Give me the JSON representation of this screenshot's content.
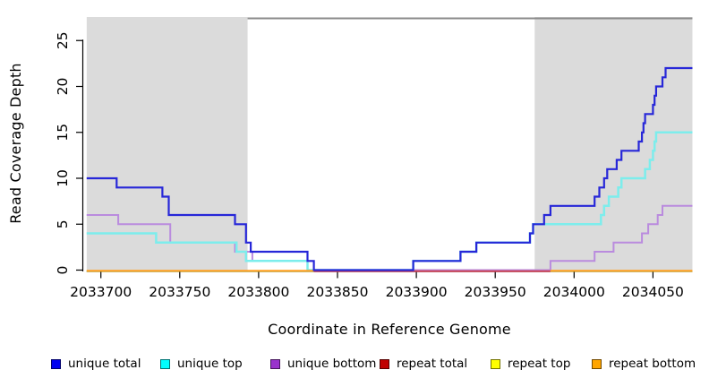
{
  "chart_data": {
    "type": "line",
    "subtype": "step",
    "title": "",
    "xlabel": "Coordinate in Reference Genome",
    "ylabel": "Read Coverage Depth",
    "xlim": [
      2033691,
      2034075
    ],
    "ylim": [
      0,
      27.5
    ],
    "grid": false,
    "legend_position": "bottom",
    "x_ticks": [
      2033700,
      2033750,
      2033800,
      2033850,
      2033900,
      2033950,
      2034000,
      2034050
    ],
    "y_ticks": [
      0,
      5,
      10,
      15,
      20,
      25
    ],
    "shaded_regions": [
      {
        "name": "left-gray-region",
        "from": 2033691,
        "to": 2033793,
        "color": "#dbdbdb"
      },
      {
        "name": "right-gray-region",
        "from": 2033975,
        "to": 2034075,
        "color": "#dbdbdb"
      }
    ],
    "top_bar": {
      "from": 2033793,
      "to": 2034075,
      "color": "#8b8b8b"
    },
    "series": [
      {
        "name": "unique total",
        "line_color": "#2727d8",
        "legend_color": "#0000f0",
        "step_points": [
          [
            2033691,
            10
          ],
          [
            2033710,
            9
          ],
          [
            2033739,
            8
          ],
          [
            2033743,
            6
          ],
          [
            2033785,
            5
          ],
          [
            2033792,
            3
          ],
          [
            2033795,
            2
          ],
          [
            2033831,
            1
          ],
          [
            2033835,
            0
          ],
          [
            2033898,
            1
          ],
          [
            2033928,
            2
          ],
          [
            2033938,
            3
          ],
          [
            2033972,
            4
          ],
          [
            2033974,
            5
          ],
          [
            2033981,
            6
          ],
          [
            2033985,
            7
          ],
          [
            2034013,
            8
          ],
          [
            2034016,
            9
          ],
          [
            2034019,
            10
          ],
          [
            2034021,
            11
          ],
          [
            2034027,
            12
          ],
          [
            2034030,
            13
          ],
          [
            2034041,
            14
          ],
          [
            2034043,
            15
          ],
          [
            2034044,
            16
          ],
          [
            2034045,
            17
          ],
          [
            2034050,
            18
          ],
          [
            2034051,
            19
          ],
          [
            2034052,
            20
          ],
          [
            2034056,
            21
          ],
          [
            2034058,
            22
          ],
          [
            2034075,
            22
          ]
        ]
      },
      {
        "name": "unique top",
        "line_color": "#7dedec",
        "legend_color": "#00ffff",
        "step_points": [
          [
            2033691,
            4
          ],
          [
            2033735,
            3
          ],
          [
            2033786,
            2
          ],
          [
            2033792,
            1
          ],
          [
            2033831,
            0
          ],
          [
            2033898,
            1
          ],
          [
            2033928,
            2
          ],
          [
            2033938,
            3
          ],
          [
            2033972,
            4
          ],
          [
            2033974,
            5
          ],
          [
            2034017,
            6
          ],
          [
            2034019,
            7
          ],
          [
            2034022,
            8
          ],
          [
            2034028,
            9
          ],
          [
            2034030,
            10
          ],
          [
            2034045,
            11
          ],
          [
            2034048,
            12
          ],
          [
            2034050,
            13
          ],
          [
            2034051,
            14
          ],
          [
            2034052,
            15
          ],
          [
            2034075,
            15
          ]
        ]
      },
      {
        "name": "unique bottom",
        "line_color": "#ba8bde",
        "legend_color": "#9932cc",
        "step_points": [
          [
            2033691,
            6
          ],
          [
            2033711,
            5
          ],
          [
            2033744,
            3
          ],
          [
            2033785,
            2
          ],
          [
            2033796,
            1
          ],
          [
            2033831,
            0
          ],
          [
            2033985,
            1
          ],
          [
            2034013,
            2
          ],
          [
            2034025,
            3
          ],
          [
            2034043,
            4
          ],
          [
            2034047,
            5
          ],
          [
            2034053,
            6
          ],
          [
            2034056,
            7
          ],
          [
            2034075,
            7
          ]
        ]
      },
      {
        "name": "repeat total",
        "line_color": "#c94057",
        "legend_color": "#c00000",
        "step_points": [
          [
            2033691,
            0
          ],
          [
            2034075,
            0
          ]
        ],
        "visible_segments": [
          [
            2033835,
            2033985
          ]
        ]
      },
      {
        "name": "repeat top",
        "line_color": "#ffff00",
        "legend_color": "#ffff00",
        "step_points": [
          [
            2033691,
            0
          ],
          [
            2034075,
            0
          ]
        ],
        "visible_segments": []
      },
      {
        "name": "repeat bottom",
        "line_color": "#ffa022",
        "legend_color": "#ffa500",
        "step_points": [
          [
            2033691,
            0
          ],
          [
            2034075,
            0
          ]
        ],
        "visible_segments": [
          [
            2033691,
            2033835
          ],
          [
            2033985,
            2034075
          ]
        ]
      }
    ]
  }
}
